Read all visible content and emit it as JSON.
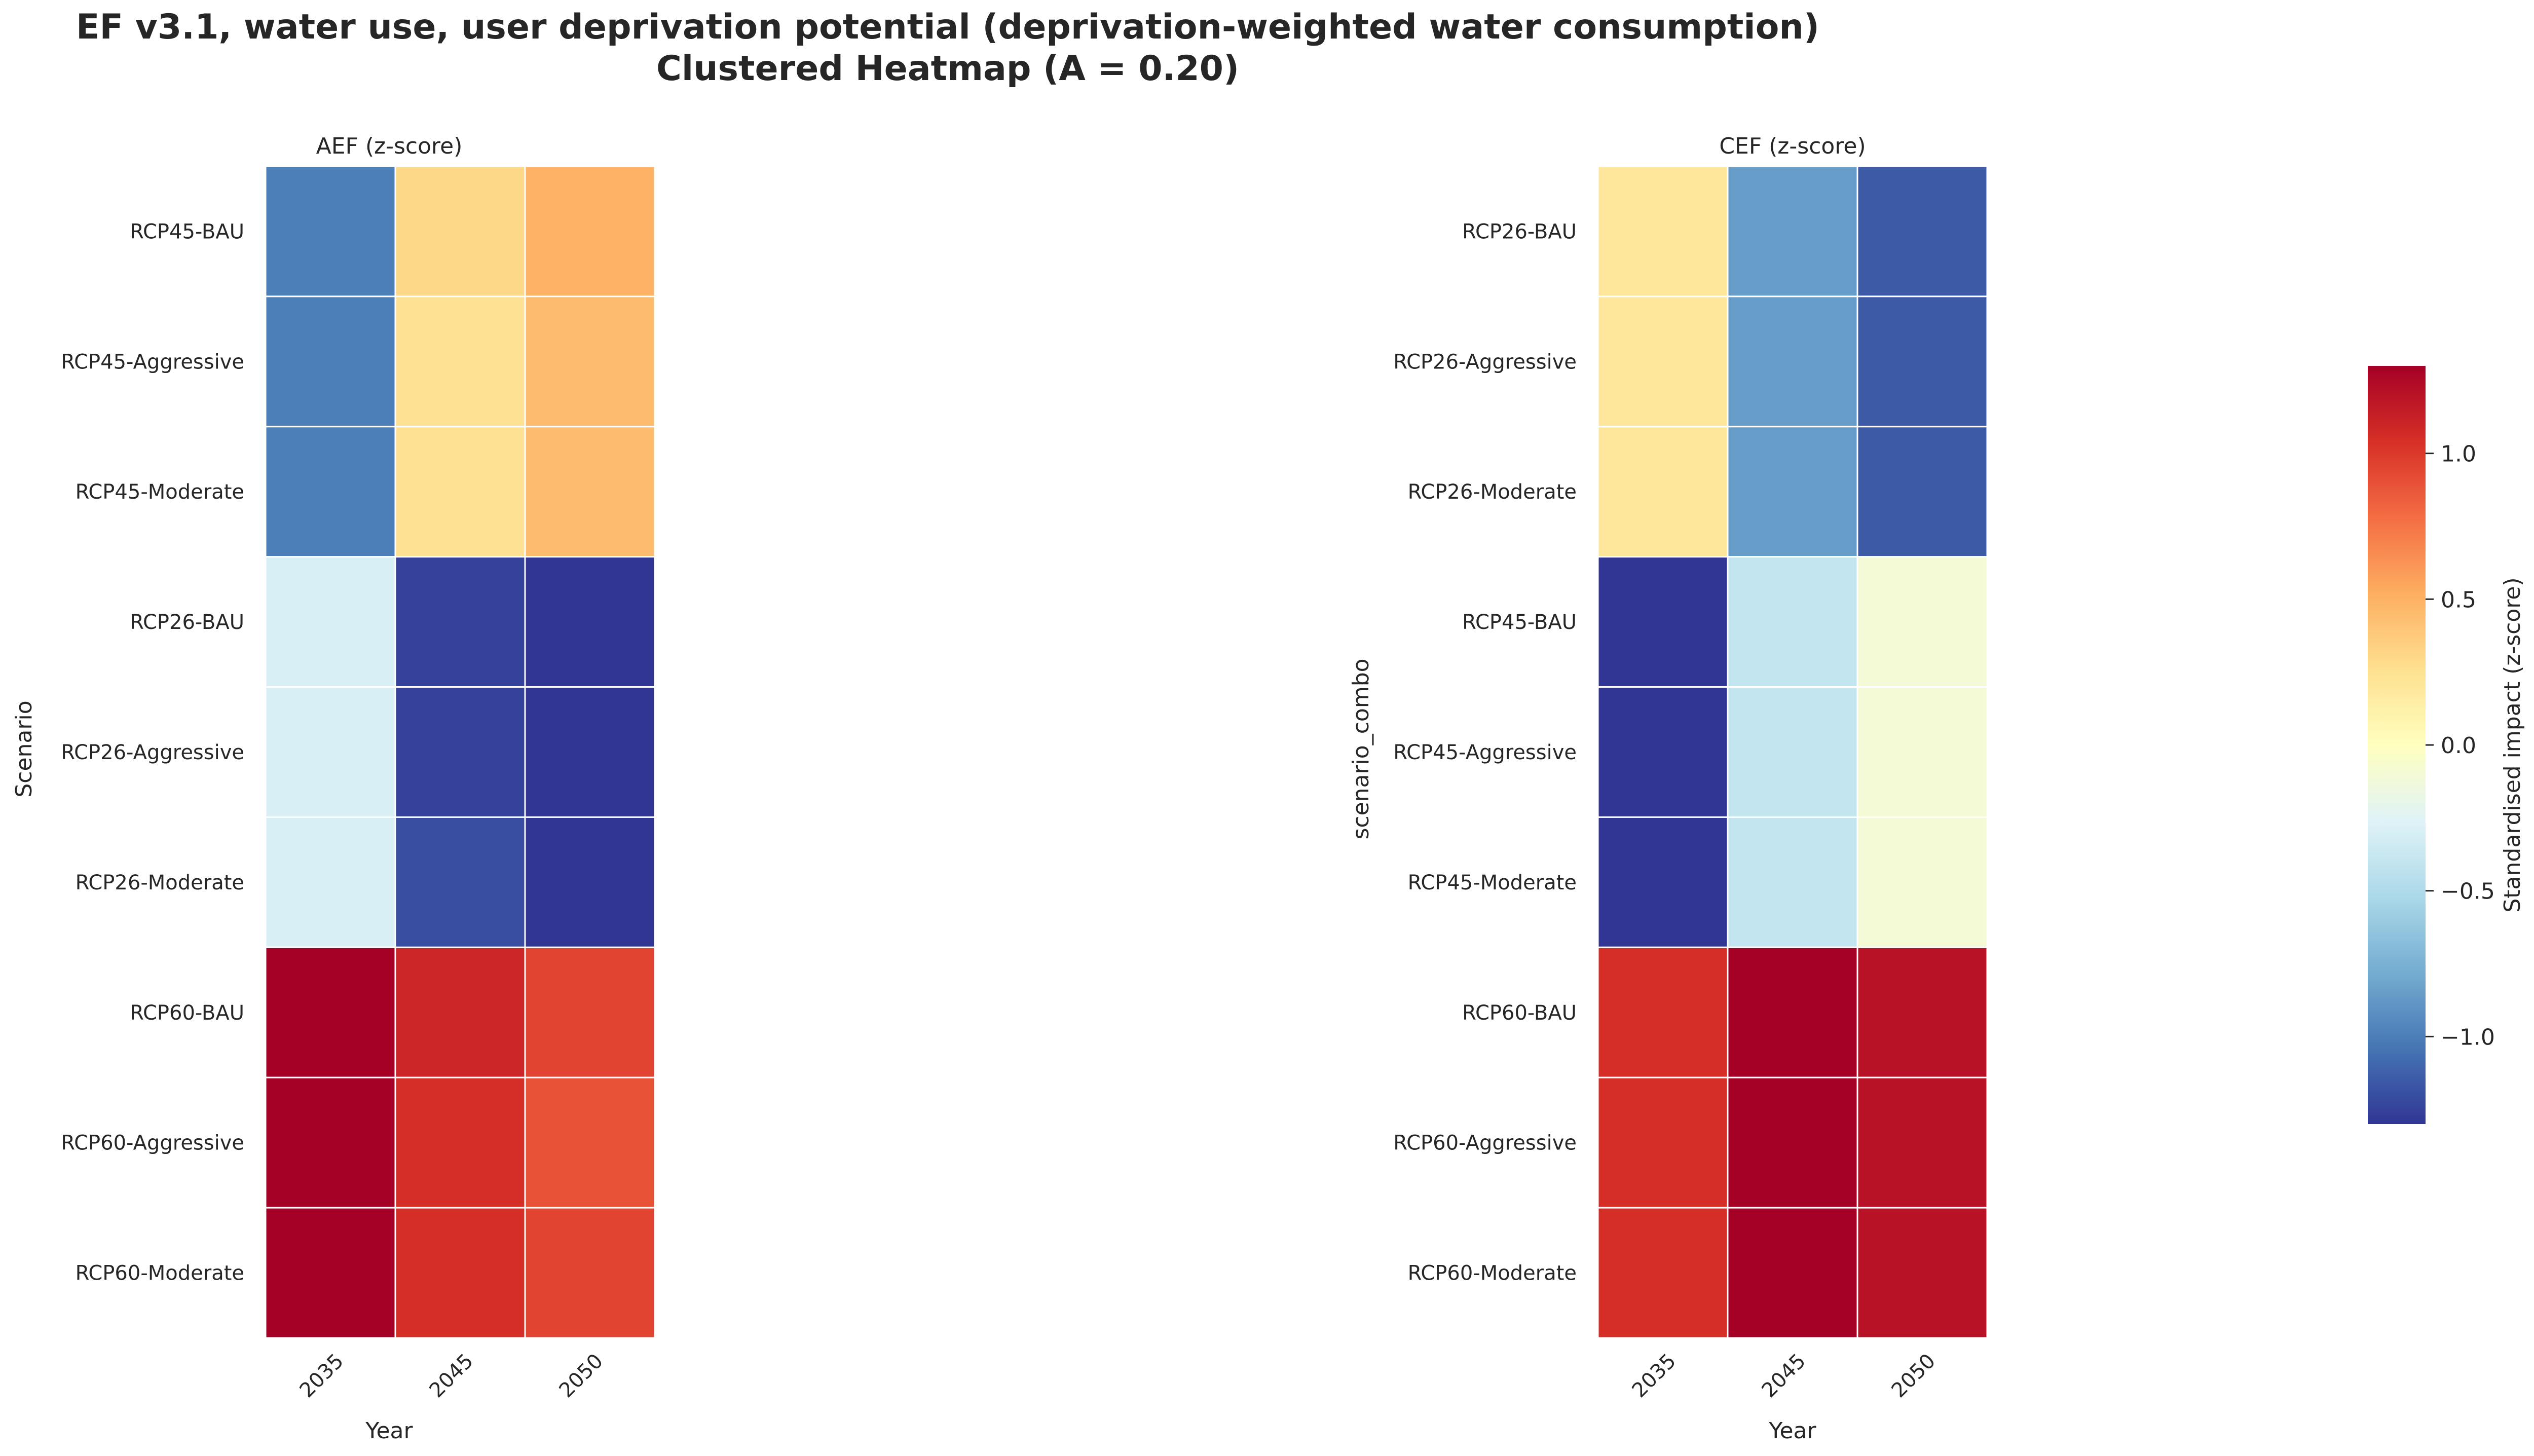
{
  "figure": {
    "title_line1": "EF v3.1, water use, user deprivation potential (deprivation-weighted water consumption)",
    "title_line2": "Clustered Heatmap (A = 0.20)"
  },
  "chart_data": [
    {
      "type": "heatmap",
      "title": "AEF (z-score)",
      "xlabel": "Year",
      "ylabel": "Scenario",
      "x": [
        "2035",
        "2045",
        "2050"
      ],
      "y": [
        "RCP45-BAU",
        "RCP45-Aggressive",
        "RCP45-Moderate",
        "RCP26-BAU",
        "RCP26-Aggressive",
        "RCP26-Moderate",
        "RCP60-BAU",
        "RCP60-Aggressive",
        "RCP60-Moderate"
      ],
      "values": [
        [
          -1.0,
          0.3,
          0.5
        ],
        [
          -1.0,
          0.25,
          0.45
        ],
        [
          -1.0,
          0.25,
          0.45
        ],
        [
          -0.3,
          -1.25,
          -1.3
        ],
        [
          -0.3,
          -1.25,
          -1.3
        ],
        [
          -0.3,
          -1.2,
          -1.3
        ],
        [
          1.3,
          1.1,
          0.95
        ],
        [
          1.3,
          1.05,
          0.9
        ],
        [
          1.3,
          1.05,
          0.95
        ]
      ],
      "colormap": "RdYlBu_r",
      "vmin": -1.3,
      "vmax": 1.3
    },
    {
      "type": "heatmap",
      "title": "CEF (z-score)",
      "xlabel": "Year",
      "ylabel": "scenario_combo",
      "x": [
        "2035",
        "2045",
        "2050"
      ],
      "y": [
        "RCP26-BAU",
        "RCP26-Aggressive",
        "RCP26-Moderate",
        "RCP45-BAU",
        "RCP45-Aggressive",
        "RCP45-Moderate",
        "RCP60-BAU",
        "RCP60-Aggressive",
        "RCP60-Moderate"
      ],
      "values": [
        [
          0.2,
          -0.85,
          -1.15
        ],
        [
          0.2,
          -0.85,
          -1.15
        ],
        [
          0.2,
          -0.85,
          -1.15
        ],
        [
          -1.3,
          -0.4,
          -0.1
        ],
        [
          -1.3,
          -0.4,
          -0.1
        ],
        [
          -1.3,
          -0.4,
          -0.1
        ],
        [
          1.05,
          1.3,
          1.2
        ],
        [
          1.05,
          1.3,
          1.2
        ],
        [
          1.05,
          1.3,
          1.2
        ]
      ],
      "colormap": "RdYlBu_r",
      "vmin": -1.3,
      "vmax": 1.3
    }
  ],
  "colorbar": {
    "label": "Standardised impact (z-score)",
    "vmin": -1.3,
    "vmax": 1.3,
    "ticks": [
      "−1.0",
      "−0.5",
      "0.0",
      "0.5",
      "1.0"
    ],
    "tick_values": [
      -1.0,
      -0.5,
      0.0,
      0.5,
      1.0
    ]
  }
}
